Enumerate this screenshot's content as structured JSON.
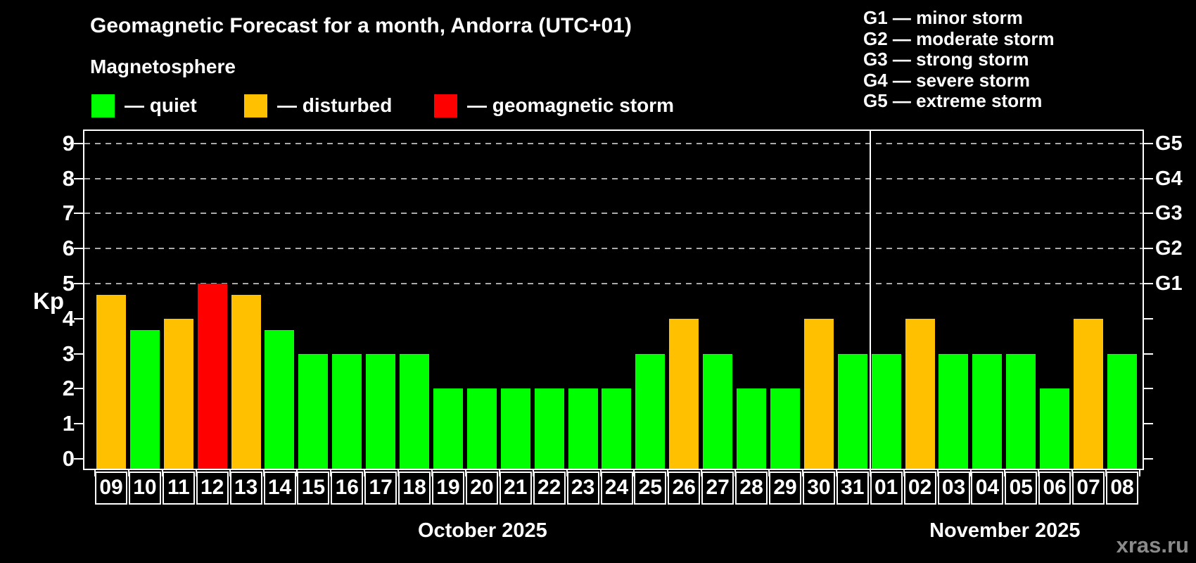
{
  "title": "Geomagnetic Forecast for a month, Andorra (UTC+01)",
  "subtitle": "Magnetosphere",
  "legend": [
    {
      "key": "quiet",
      "label": "— quiet",
      "color": "#00ff00"
    },
    {
      "key": "disturbed",
      "label": "— disturbed",
      "color": "#ffc000"
    },
    {
      "key": "storm",
      "label": "— geomagnetic storm",
      "color": "#ff0000"
    }
  ],
  "g_scale": [
    {
      "label": "G1 — minor storm"
    },
    {
      "label": "G2 — moderate storm"
    },
    {
      "label": "G3 — strong storm"
    },
    {
      "label": "G4 — severe storm"
    },
    {
      "label": "G5 — extreme storm"
    }
  ],
  "watermark": "xras.ru",
  "chart_data": {
    "type": "bar",
    "title": "Geomagnetic Forecast for a month, Andorra (UTC+01)",
    "subtitle": "Magnetosphere",
    "ylabel": "Kp",
    "ylim": [
      -0.3,
      9.4
    ],
    "yticks": [
      0,
      1,
      2,
      3,
      4,
      5,
      6,
      7,
      8,
      9
    ],
    "gridlines_at": [
      5,
      6,
      7,
      8,
      9
    ],
    "grid_style": "dashed",
    "legend_position": "top-left",
    "right_axis": [
      {
        "kp": 5,
        "label": "G1"
      },
      {
        "kp": 6,
        "label": "G2"
      },
      {
        "kp": 7,
        "label": "G3"
      },
      {
        "kp": 8,
        "label": "G4"
      },
      {
        "kp": 9,
        "label": "G5"
      }
    ],
    "months": [
      {
        "label": "October 2025",
        "count": 23
      },
      {
        "label": "November 2025",
        "count": 8
      }
    ],
    "status_colors": {
      "quiet": "#00ff00",
      "disturbed": "#ffc000",
      "storm": "#ff0000"
    },
    "points": [
      {
        "date": "09",
        "kp": 4.67,
        "status": "disturbed"
      },
      {
        "date": "10",
        "kp": 3.67,
        "status": "quiet"
      },
      {
        "date": "11",
        "kp": 4.0,
        "status": "disturbed"
      },
      {
        "date": "12",
        "kp": 5.0,
        "status": "storm"
      },
      {
        "date": "13",
        "kp": 4.67,
        "status": "disturbed"
      },
      {
        "date": "14",
        "kp": 3.67,
        "status": "quiet"
      },
      {
        "date": "15",
        "kp": 3.0,
        "status": "quiet"
      },
      {
        "date": "16",
        "kp": 3.0,
        "status": "quiet"
      },
      {
        "date": "17",
        "kp": 3.0,
        "status": "quiet"
      },
      {
        "date": "18",
        "kp": 3.0,
        "status": "quiet"
      },
      {
        "date": "19",
        "kp": 2.0,
        "status": "quiet"
      },
      {
        "date": "20",
        "kp": 2.0,
        "status": "quiet"
      },
      {
        "date": "21",
        "kp": 2.0,
        "status": "quiet"
      },
      {
        "date": "22",
        "kp": 2.0,
        "status": "quiet"
      },
      {
        "date": "23",
        "kp": 2.0,
        "status": "quiet"
      },
      {
        "date": "24",
        "kp": 2.0,
        "status": "quiet"
      },
      {
        "date": "25",
        "kp": 3.0,
        "status": "quiet"
      },
      {
        "date": "26",
        "kp": 4.0,
        "status": "disturbed"
      },
      {
        "date": "27",
        "kp": 3.0,
        "status": "quiet"
      },
      {
        "date": "28",
        "kp": 2.0,
        "status": "quiet"
      },
      {
        "date": "29",
        "kp": 2.0,
        "status": "quiet"
      },
      {
        "date": "30",
        "kp": 4.0,
        "status": "disturbed"
      },
      {
        "date": "31",
        "kp": 3.0,
        "status": "quiet"
      },
      {
        "date": "01",
        "kp": 3.0,
        "status": "quiet"
      },
      {
        "date": "02",
        "kp": 4.0,
        "status": "disturbed"
      },
      {
        "date": "03",
        "kp": 3.0,
        "status": "quiet"
      },
      {
        "date": "04",
        "kp": 3.0,
        "status": "quiet"
      },
      {
        "date": "05",
        "kp": 3.0,
        "status": "quiet"
      },
      {
        "date": "06",
        "kp": 2.0,
        "status": "quiet"
      },
      {
        "date": "07",
        "kp": 4.0,
        "status": "disturbed"
      },
      {
        "date": "08",
        "kp": 3.0,
        "status": "quiet"
      }
    ]
  }
}
